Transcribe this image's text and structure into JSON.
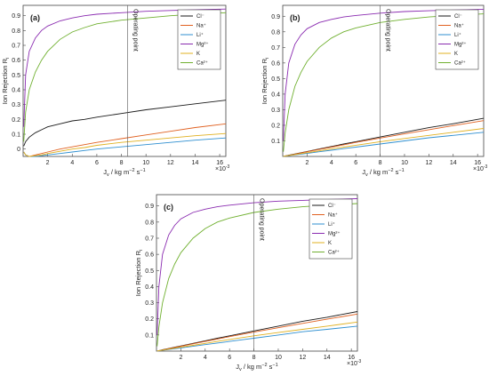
{
  "chart_data": [
    {
      "type": "line",
      "panel_label": "(a)",
      "xlabel": "J_v / kg m^-2 s^-1",
      "ylabel": "Ion Rejection R_i",
      "x_scale_note": "×10^-3",
      "xlim": [
        0,
        16.5
      ],
      "ylim": [
        -0.05,
        0.97
      ],
      "xticks": [
        2,
        4,
        6,
        8,
        10,
        12,
        14,
        16
      ],
      "yticks": [
        0,
        0.1,
        0.2,
        0.3,
        0.4,
        0.5,
        0.6,
        0.7,
        0.8,
        0.9
      ],
      "grid": false,
      "legend_position": "top-right",
      "annotation": {
        "text": "Operating point",
        "x": 8.5
      },
      "x": [
        0.05,
        0.2,
        0.5,
        1,
        1.5,
        2,
        3,
        4,
        5,
        6,
        8,
        10,
        12,
        14,
        16.5
      ],
      "series": [
        {
          "name": "Cl⁻",
          "color": "#1a1a1a",
          "values": [
            0.02,
            0.05,
            0.08,
            0.11,
            0.13,
            0.15,
            0.17,
            0.19,
            0.2,
            0.215,
            0.24,
            0.265,
            0.285,
            0.305,
            0.33
          ]
        },
        {
          "name": "Na⁺",
          "color": "#e06020",
          "values": [
            -0.02,
            -0.04,
            -0.05,
            -0.04,
            -0.03,
            -0.02,
            0,
            0.015,
            0.03,
            0.045,
            0.07,
            0.095,
            0.12,
            0.145,
            0.17
          ]
        },
        {
          "name": "Li⁺",
          "color": "#2f8fd0",
          "values": [
            -0.02,
            -0.04,
            -0.05,
            -0.05,
            -0.045,
            -0.04,
            -0.03,
            -0.02,
            -0.01,
            0,
            0.015,
            0.03,
            0.045,
            0.06,
            0.075
          ]
        },
        {
          "name": "Mg²⁺",
          "color": "#8a2bb0",
          "values": [
            0.15,
            0.5,
            0.66,
            0.75,
            0.8,
            0.83,
            0.865,
            0.885,
            0.9,
            0.91,
            0.92,
            0.93,
            0.935,
            0.94,
            0.945
          ]
        },
        {
          "name": "K",
          "color": "#e0b020",
          "values": [
            -0.02,
            -0.04,
            -0.05,
            -0.045,
            -0.04,
            -0.03,
            -0.015,
            0,
            0.01,
            0.025,
            0.045,
            0.06,
            0.075,
            0.09,
            0.105
          ]
        },
        {
          "name": "Ca²⁺",
          "color": "#70b030",
          "values": [
            0.05,
            0.25,
            0.4,
            0.52,
            0.6,
            0.66,
            0.74,
            0.79,
            0.82,
            0.845,
            0.87,
            0.885,
            0.9,
            0.91,
            0.92
          ]
        }
      ]
    },
    {
      "type": "line",
      "panel_label": "(b)",
      "xlabel": "J_v / kg m^-2 s^-1",
      "ylabel": "Ion Rejection R_i",
      "x_scale_note": "×10^-3",
      "xlim": [
        0,
        16.5
      ],
      "ylim": [
        0,
        0.97
      ],
      "xticks": [
        2,
        4,
        6,
        8,
        10,
        12,
        14,
        16
      ],
      "yticks": [
        0.1,
        0.2,
        0.3,
        0.4,
        0.5,
        0.6,
        0.7,
        0.8,
        0.9
      ],
      "grid": false,
      "legend_position": "top-right",
      "annotation": {
        "text": "Operating point",
        "x": 8.0
      },
      "x": [
        0.05,
        0.2,
        0.5,
        1,
        1.5,
        2,
        3,
        4,
        5,
        6,
        8,
        10,
        12,
        14,
        16.5
      ],
      "series": [
        {
          "name": "Cl⁻",
          "color": "#1a1a1a",
          "values": [
            0.0,
            0.003,
            0.008,
            0.016,
            0.024,
            0.032,
            0.048,
            0.064,
            0.08,
            0.095,
            0.125,
            0.155,
            0.185,
            0.21,
            0.245
          ]
        },
        {
          "name": "Na⁺",
          "color": "#e06020",
          "values": [
            0.0,
            0.003,
            0.007,
            0.015,
            0.022,
            0.03,
            0.045,
            0.06,
            0.075,
            0.09,
            0.118,
            0.145,
            0.172,
            0.198,
            0.23
          ]
        },
        {
          "name": "Li⁺",
          "color": "#2f8fd0",
          "values": [
            0.0,
            0.002,
            0.005,
            0.01,
            0.015,
            0.02,
            0.03,
            0.04,
            0.05,
            0.06,
            0.08,
            0.1,
            0.12,
            0.135,
            0.155
          ]
        },
        {
          "name": "Mg²⁺",
          "color": "#8a2bb0",
          "values": [
            0.1,
            0.4,
            0.6,
            0.72,
            0.78,
            0.82,
            0.86,
            0.88,
            0.895,
            0.905,
            0.92,
            0.93,
            0.935,
            0.94,
            0.945
          ]
        },
        {
          "name": "K",
          "color": "#e0b020",
          "values": [
            0.0,
            0.002,
            0.006,
            0.012,
            0.018,
            0.024,
            0.036,
            0.048,
            0.06,
            0.072,
            0.095,
            0.115,
            0.135,
            0.155,
            0.18
          ]
        },
        {
          "name": "Ca²⁺",
          "color": "#70b030",
          "values": [
            0.03,
            0.15,
            0.3,
            0.45,
            0.54,
            0.61,
            0.7,
            0.76,
            0.8,
            0.825,
            0.86,
            0.88,
            0.895,
            0.905,
            0.915
          ]
        }
      ]
    },
    {
      "type": "line",
      "panel_label": "(c)",
      "xlabel": "J_v / kg m^-2 s^-1",
      "ylabel": "Ion Rejection R_i",
      "x_scale_note": "×10^-3",
      "xlim": [
        0,
        16.5
      ],
      "ylim": [
        0,
        0.97
      ],
      "xticks": [
        2,
        4,
        6,
        8,
        10,
        12,
        14,
        16
      ],
      "yticks": [
        0.1,
        0.2,
        0.3,
        0.4,
        0.5,
        0.6,
        0.7,
        0.8,
        0.9
      ],
      "grid": false,
      "legend_position": "top-right",
      "annotation": {
        "text": "Operating point",
        "x": 8.0
      },
      "x": [
        0.05,
        0.2,
        0.5,
        1,
        1.5,
        2,
        3,
        4,
        5,
        6,
        8,
        10,
        12,
        14,
        16.5
      ],
      "series": [
        {
          "name": "Cl⁻",
          "color": "#1a1a1a",
          "values": [
            0.0,
            0.003,
            0.008,
            0.016,
            0.024,
            0.032,
            0.048,
            0.064,
            0.08,
            0.095,
            0.125,
            0.155,
            0.185,
            0.21,
            0.245
          ]
        },
        {
          "name": "Na⁺",
          "color": "#e06020",
          "values": [
            0.0,
            0.003,
            0.007,
            0.015,
            0.022,
            0.03,
            0.045,
            0.06,
            0.075,
            0.09,
            0.118,
            0.145,
            0.172,
            0.198,
            0.23
          ]
        },
        {
          "name": "Li⁺",
          "color": "#2f8fd0",
          "values": [
            0.0,
            0.002,
            0.005,
            0.01,
            0.015,
            0.02,
            0.03,
            0.04,
            0.05,
            0.06,
            0.08,
            0.1,
            0.12,
            0.135,
            0.155
          ]
        },
        {
          "name": "Mg²⁺",
          "color": "#8a2bb0",
          "values": [
            0.1,
            0.4,
            0.6,
            0.72,
            0.78,
            0.82,
            0.86,
            0.88,
            0.895,
            0.905,
            0.92,
            0.93,
            0.935,
            0.94,
            0.945
          ]
        },
        {
          "name": "K",
          "color": "#e0b020",
          "values": [
            0.0,
            0.002,
            0.006,
            0.012,
            0.018,
            0.024,
            0.036,
            0.048,
            0.06,
            0.072,
            0.095,
            0.115,
            0.135,
            0.155,
            0.18
          ]
        },
        {
          "name": "Ca²⁺",
          "color": "#70b030",
          "values": [
            0.03,
            0.15,
            0.3,
            0.45,
            0.54,
            0.61,
            0.7,
            0.76,
            0.8,
            0.825,
            0.86,
            0.88,
            0.895,
            0.905,
            0.915
          ]
        }
      ]
    }
  ]
}
